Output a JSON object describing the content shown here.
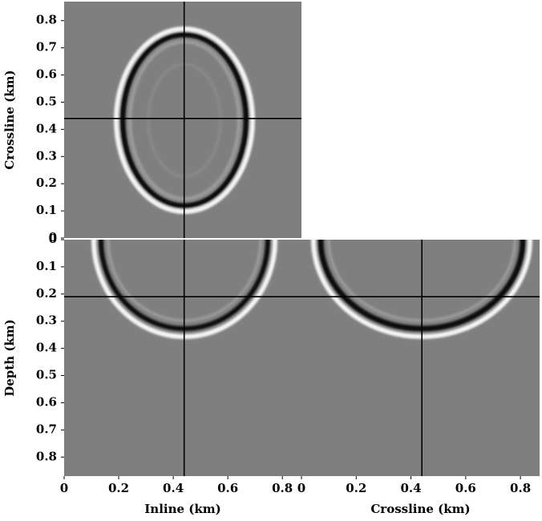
{
  "chart_data": [
    {
      "type": "image",
      "ylabel": "Crossline (km)",
      "xlim": [
        0,
        0.87
      ],
      "ylim": [
        0,
        0.87
      ],
      "yticks": [
        0,
        0.1,
        0.2,
        0.3,
        0.4,
        0.5,
        0.6,
        0.7,
        0.8
      ],
      "crosshair": {
        "x": 0.44,
        "y": 0.44
      }
    },
    {
      "type": "image",
      "xlabel": "Inline (km)",
      "ylabel": "Depth (km)",
      "xlim": [
        0,
        0.87
      ],
      "ylim": [
        0.87,
        0
      ],
      "xticks": [
        0,
        0.2,
        0.4,
        0.6,
        0.8
      ],
      "yticks": [
        0,
        0.1,
        0.2,
        0.3,
        0.4,
        0.5,
        0.6,
        0.7,
        0.8
      ],
      "crosshair": {
        "x": 0.44,
        "y": 0.21
      }
    },
    {
      "type": "image",
      "xlabel": "Crossline (km)",
      "xlim": [
        0,
        0.87
      ],
      "ylim": [
        0.87,
        0
      ],
      "xticks": [
        0,
        0.2,
        0.4,
        0.6,
        0.8
      ],
      "crosshair": {
        "x": 0.44,
        "y": 0.21
      }
    }
  ]
}
